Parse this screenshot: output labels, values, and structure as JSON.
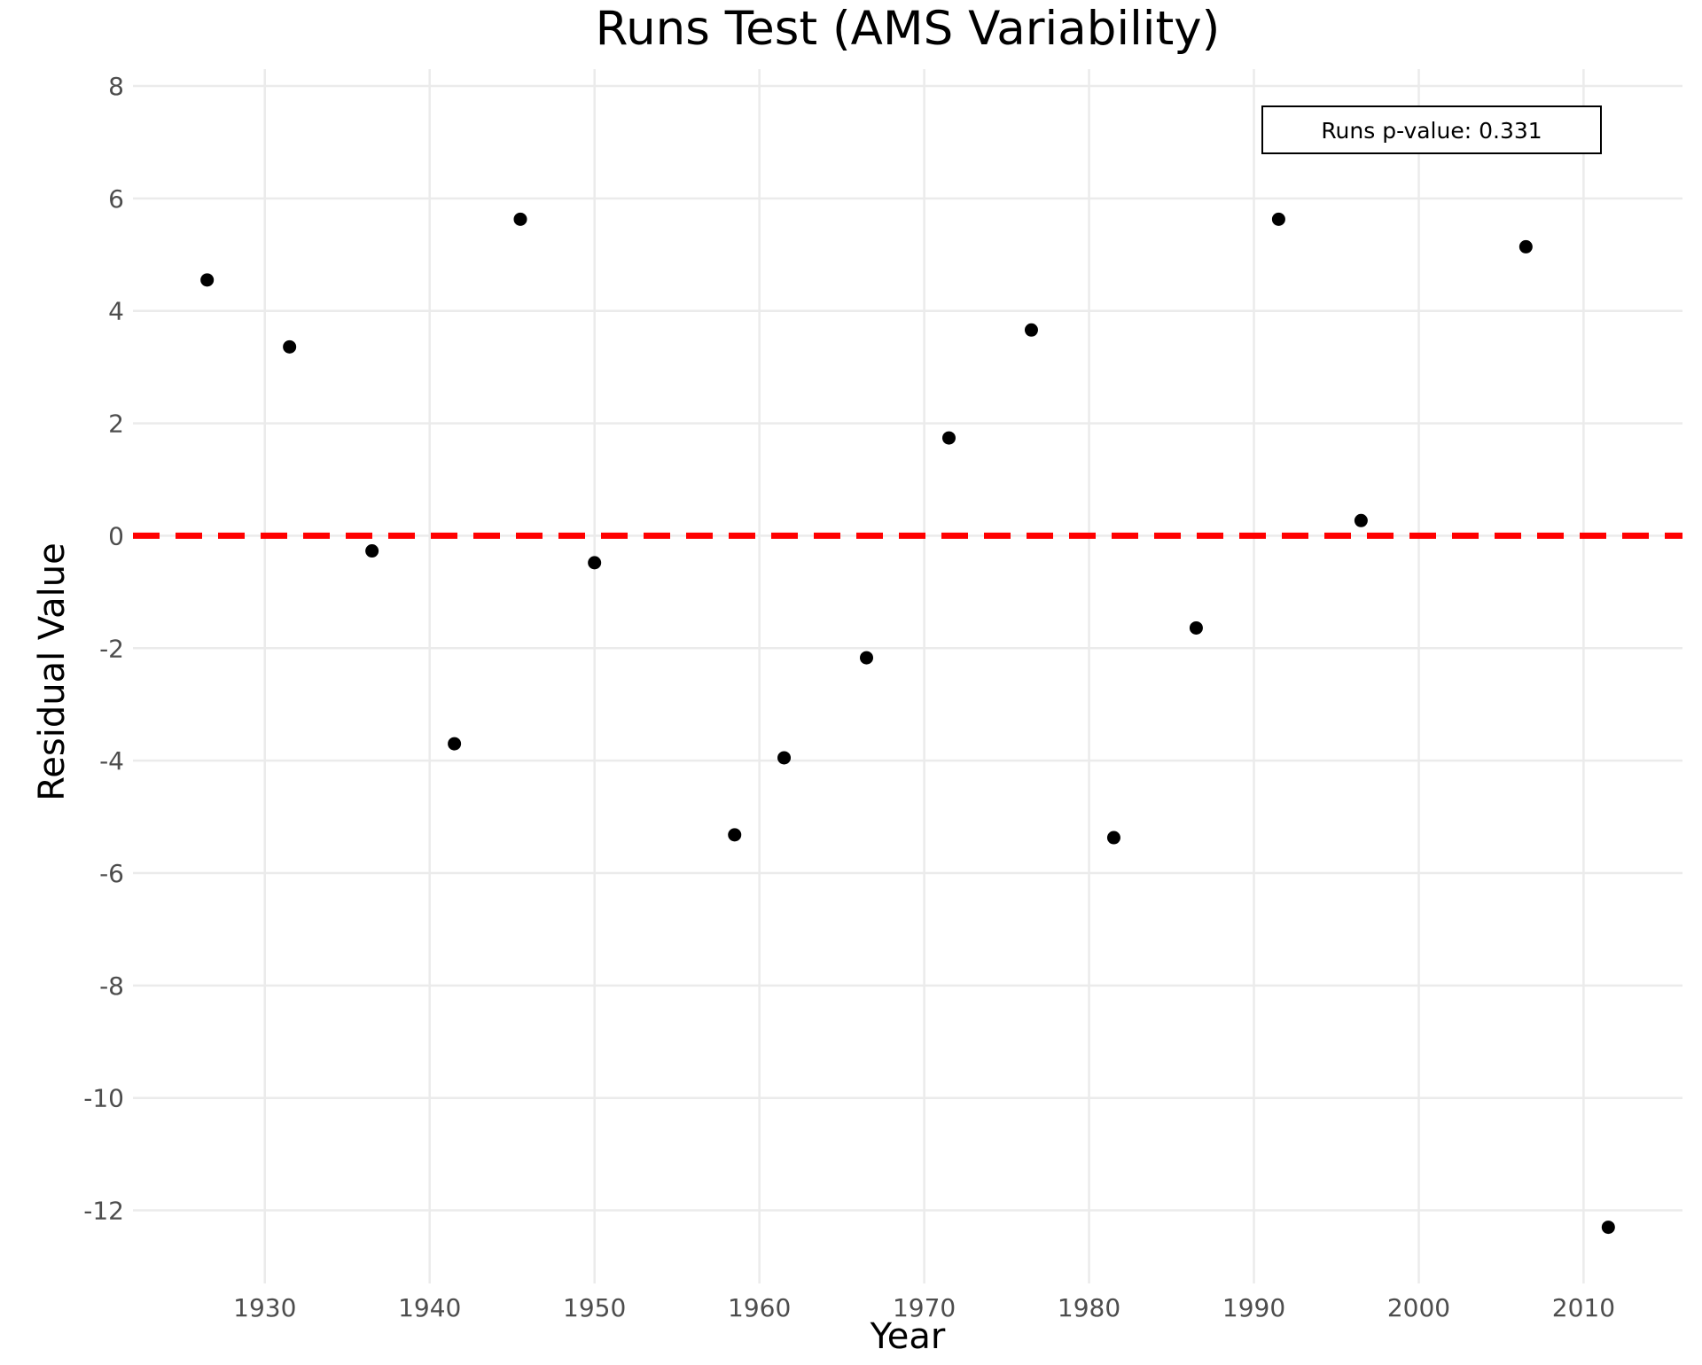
{
  "chart_data": {
    "type": "scatter",
    "title": "Runs Test (AMS Variability)",
    "xlabel": "Year",
    "ylabel": "Residual Value",
    "xlim": [
      1922,
      2016
    ],
    "ylim": [
      -13.3,
      8.3
    ],
    "x_ticks": [
      1930,
      1940,
      1950,
      1960,
      1970,
      1980,
      1990,
      2000,
      2010
    ],
    "y_ticks": [
      8,
      6,
      4,
      2,
      0,
      -2,
      -4,
      -6,
      -8,
      -10,
      -12
    ],
    "grid": true,
    "reference_line": {
      "y": 0,
      "style": "dashed",
      "color": "#ff0000"
    },
    "point_color": "#000000",
    "series": [
      {
        "points": [
          {
            "x": 1926.5,
            "y": 4.55
          },
          {
            "x": 1931.5,
            "y": 3.36
          },
          {
            "x": 1936.5,
            "y": -0.27
          },
          {
            "x": 1941.5,
            "y": -3.7
          },
          {
            "x": 1945.5,
            "y": 5.63
          },
          {
            "x": 1950.0,
            "y": -0.48
          },
          {
            "x": 1958.5,
            "y": -5.32
          },
          {
            "x": 1961.5,
            "y": -3.95
          },
          {
            "x": 1966.5,
            "y": -2.17
          },
          {
            "x": 1971.5,
            "y": 1.74
          },
          {
            "x": 1976.5,
            "y": 3.66
          },
          {
            "x": 1981.5,
            "y": -5.37
          },
          {
            "x": 1986.5,
            "y": -1.64
          },
          {
            "x": 1991.5,
            "y": 5.63
          },
          {
            "x": 1996.5,
            "y": 0.27
          },
          {
            "x": 2006.5,
            "y": 5.14
          },
          {
            "x": 2011.5,
            "y": -12.3
          }
        ]
      }
    ],
    "annotation": {
      "text": "Runs p-value: 0.331",
      "position": "top-right"
    }
  }
}
